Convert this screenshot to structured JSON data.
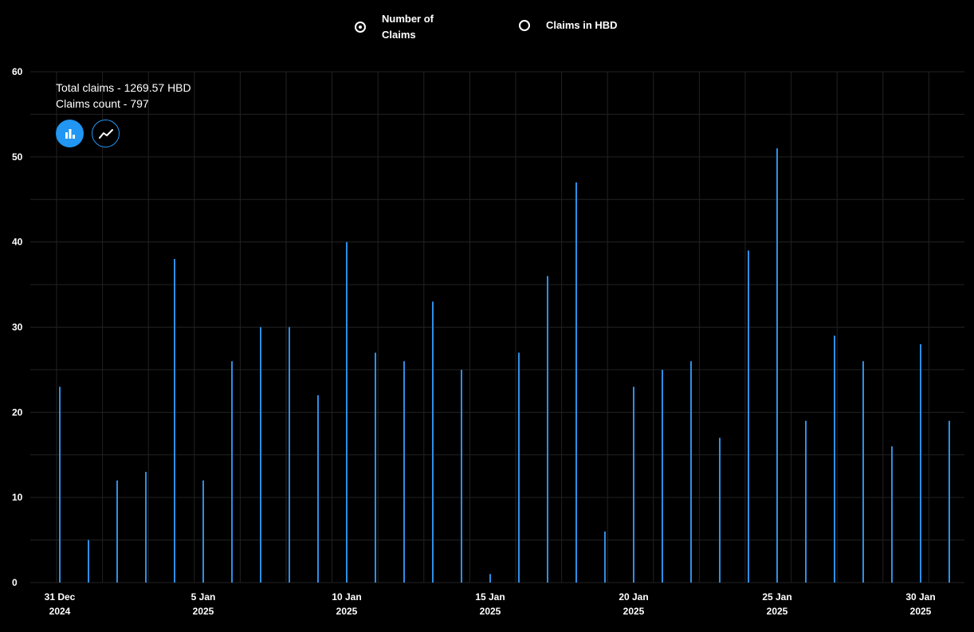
{
  "toggle": {
    "options": [
      {
        "label_line1": "Number of",
        "label_line2": "Claims",
        "checked": true
      },
      {
        "label_line1": "Claims in HBD",
        "label_line2": "",
        "checked": false
      }
    ]
  },
  "summary": {
    "total_claims": "Total claims - 1269.57 HBD",
    "claims_count": "Claims count - 797"
  },
  "chart_type_buttons": [
    {
      "icon": "bar-chart-icon",
      "active": true
    },
    {
      "icon": "line-chart-icon",
      "active": false
    }
  ],
  "colors": {
    "bar": "#2f8fe6",
    "accent": "#2196f3",
    "grid": "#222222",
    "background": "#000000"
  },
  "chart_data": {
    "type": "bar",
    "x": [
      "2024-12-31",
      "2025-01-01",
      "2025-01-02",
      "2025-01-03",
      "2025-01-04",
      "2025-01-05",
      "2025-01-06",
      "2025-01-07",
      "2025-01-08",
      "2025-01-09",
      "2025-01-10",
      "2025-01-11",
      "2025-01-12",
      "2025-01-13",
      "2025-01-14",
      "2025-01-15",
      "2025-01-16",
      "2025-01-17",
      "2025-01-18",
      "2025-01-19",
      "2025-01-20",
      "2025-01-21",
      "2025-01-22",
      "2025-01-23",
      "2025-01-24",
      "2025-01-25",
      "2025-01-26",
      "2025-01-27",
      "2025-01-28",
      "2025-01-29",
      "2025-01-30",
      "2025-01-31"
    ],
    "values": [
      23,
      5,
      12,
      13,
      38,
      12,
      26,
      30,
      30,
      22,
      40,
      27,
      26,
      33,
      25,
      1,
      27,
      36,
      47,
      6,
      23,
      25,
      26,
      17,
      39,
      51,
      19,
      29,
      26,
      16,
      28,
      19
    ],
    "ylim": [
      0,
      60
    ],
    "yticks": [
      0,
      10,
      20,
      30,
      40,
      50,
      60
    ],
    "xticks": [
      {
        "day_index": 0,
        "line1": "31 Dec",
        "line2": "2024"
      },
      {
        "day_index": 5,
        "line1": "5 Jan",
        "line2": "2025"
      },
      {
        "day_index": 10,
        "line1": "10 Jan",
        "line2": "2025"
      },
      {
        "day_index": 15,
        "line1": "15 Jan",
        "line2": "2025"
      },
      {
        "day_index": 20,
        "line1": "20 Jan",
        "line2": "2025"
      },
      {
        "day_index": 25,
        "line1": "25 Jan",
        "line2": "2025"
      },
      {
        "day_index": 30,
        "line1": "30 Jan",
        "line2": "2025"
      }
    ],
    "grid": true,
    "xlabel": "",
    "ylabel": ""
  }
}
